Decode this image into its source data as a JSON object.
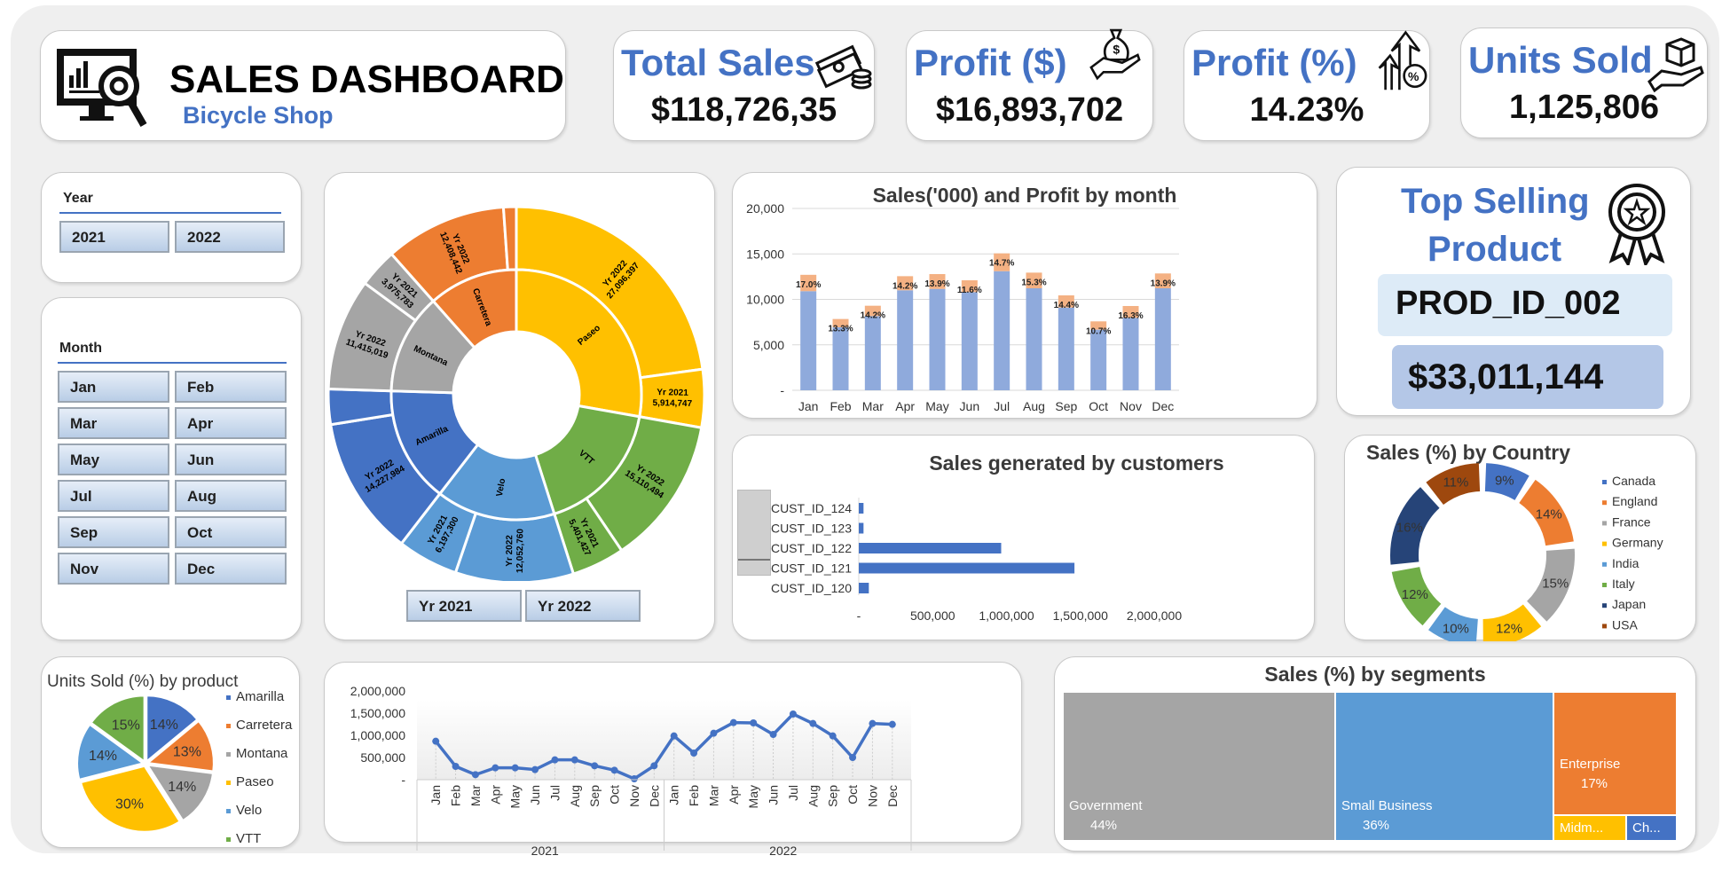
{
  "header": {
    "title": "SALES DASHBOARD",
    "subtitle": "Bicycle Shop"
  },
  "kpis": [
    {
      "title": "Total Sales",
      "value": "$118,726,35",
      "icon": "money-stack-icon"
    },
    {
      "title": "Profit ($)",
      "value": "$16,893,702",
      "icon": "money-bag-hand-icon"
    },
    {
      "title": "Profit (%)",
      "value": "14.23%",
      "icon": "arrow-up-percent-icon"
    },
    {
      "title": "Units Sold",
      "value": "1,125,806",
      "icon": "box-hand-icon"
    }
  ],
  "year_slicer": {
    "label": "Year",
    "options": [
      "2021",
      "2022"
    ]
  },
  "month_slicer": {
    "label": "Month",
    "options": [
      "Jan",
      "Feb",
      "Mar",
      "Apr",
      "May",
      "Jun",
      "Jul",
      "Aug",
      "Sep",
      "Oct",
      "Nov",
      "Dec"
    ]
  },
  "sunburst_slicer": {
    "options": [
      "Yr 2021",
      "Yr 2022"
    ]
  },
  "top_product": {
    "title_line1": "Top Selling",
    "title_line2": "Product",
    "product_id": "PROD_ID_002",
    "value": "$33,011,144"
  },
  "colors": {
    "blue": "#4472C4",
    "orange": "#ED7D31",
    "gray": "#A5A5A5",
    "yellow": "#FFC000",
    "lightblue": "#5B9BD5",
    "green": "#70AD47",
    "navy": "#264478",
    "brown": "#9E480E",
    "bar": "#8FAADC",
    "profit": "#F4B183"
  },
  "chart_data": [
    {
      "id": "sunburst",
      "type": "sunburst",
      "title": "",
      "groups": [
        {
          "name": "Paseo",
          "color": "#FFC000",
          "children": [
            {
              "name": "Yr 2022",
              "value": 27096397,
              "label": "27,096,397"
            },
            {
              "name": "Yr 2021",
              "value": 5914747,
              "label": "5,914,747"
            }
          ]
        },
        {
          "name": "VTT",
          "color": "#70AD47",
          "children": [
            {
              "name": "Yr 2022",
              "value": 15110494,
              "label": "15,110,494"
            },
            {
              "name": "Yr 2021",
              "value": 5401427,
              "label": "5,401,427"
            }
          ]
        },
        {
          "name": "Velo",
          "color": "#5B9BD5",
          "children": [
            {
              "name": "Yr 2022",
              "value": 12052760,
              "label": "12,052,760"
            },
            {
              "name": "Yr 2021",
              "value": 6197300,
              "label": "6,197,300"
            }
          ]
        },
        {
          "name": "Amarilla",
          "color": "#4472C4",
          "children": [
            {
              "name": "Yr 2022",
              "value": 14227984,
              "label": "14,227,984"
            },
            {
              "name": "",
              "value": 3600000,
              "label": ""
            }
          ]
        },
        {
          "name": "Montana",
          "color": "#A5A5A5",
          "children": [
            {
              "name": "Yr 2022",
              "value": 11415019,
              "label": "11,415,019"
            },
            {
              "name": "Yr 2021",
              "value": 3975783,
              "label": "3,975,783"
            }
          ]
        },
        {
          "name": "Carretera",
          "color": "#ED7D31",
          "children": [
            {
              "name": "Yr 2022",
              "value": 12408442,
              "label": "12,408,442"
            },
            {
              "name": "",
              "value": 1300000,
              "label": ""
            }
          ]
        }
      ]
    },
    {
      "id": "monthly",
      "type": "bar",
      "title": "Sales('000) and Profit by month",
      "categories": [
        "Jan",
        "Feb",
        "Mar",
        "Apr",
        "May",
        "Jun",
        "Jul",
        "Aug",
        "Sep",
        "Oct",
        "Nov",
        "Dec"
      ],
      "series": [
        {
          "name": "Sales",
          "values": [
            10900,
            6930,
            8160,
            11000,
            11150,
            10800,
            13100,
            11220,
            9100,
            6670,
            7970,
            11220
          ]
        },
        {
          "name": "Profit",
          "values": [
            1800,
            910,
            1140,
            1550,
            1630,
            1300,
            1960,
            1720,
            1340,
            910,
            1300,
            1630
          ]
        }
      ],
      "data_labels": [
        "17.0%",
        "13.3%",
        "14.2%",
        "14.2%",
        "13.9%",
        "11.6%",
        "14.7%",
        "15.3%",
        "14.4%",
        "10.7%",
        "16.3%",
        "13.9%"
      ],
      "yticks": [
        "-",
        "5,000",
        "10,000",
        "15,000",
        "20,000"
      ],
      "ylim": [
        0,
        20000
      ]
    },
    {
      "id": "customers",
      "type": "bar",
      "orientation": "horizontal",
      "title": "Sales generated by customers",
      "categories": [
        "CUST_ID_124",
        "CUST_ID_123",
        "CUST_ID_122",
        "CUST_ID_121",
        "CUST_ID_120"
      ],
      "values": [
        32000,
        32000,
        964000,
        1460000,
        68000
      ],
      "xticks": [
        "-",
        "500,000",
        "1,000,000",
        "1,500,000",
        "2,000,000"
      ],
      "xlim": [
        0,
        2000000
      ]
    },
    {
      "id": "country",
      "type": "pie",
      "variant": "donut",
      "title": "Sales (%) by Country",
      "legend": "right",
      "categories": [
        "Canada",
        "England",
        "France",
        "Germany",
        "India",
        "Italy",
        "Japan",
        "USA"
      ],
      "values": [
        9,
        14,
        15,
        12,
        10,
        12,
        16,
        11
      ],
      "labels": [
        "9%",
        "14%",
        "15%",
        "12%",
        "10%",
        "12%",
        "16%",
        "11%"
      ]
    },
    {
      "id": "units",
      "type": "pie",
      "title": "Units Sold (%) by product",
      "legend": "right",
      "categories": [
        "Amarilla",
        "Carretera",
        "Montana",
        "Paseo",
        "Velo",
        "VTT"
      ],
      "values": [
        14,
        13,
        14,
        30,
        14,
        15
      ],
      "labels": [
        "14%",
        "13%",
        "14%",
        "30%",
        "14%",
        "15%"
      ]
    },
    {
      "id": "trend",
      "type": "line",
      "title": "",
      "categories": [
        "Jan",
        "Feb",
        "Mar",
        "Apr",
        "May",
        "Jun",
        "Jul",
        "Aug",
        "Sep",
        "Oct",
        "Nov",
        "Dec",
        "Jan",
        "Feb",
        "Mar",
        "Apr",
        "May",
        "Jun",
        "Jul",
        "Aug",
        "Sep",
        "Oct",
        "Nov",
        "Dec"
      ],
      "groups": [
        "2021",
        "2022"
      ],
      "values": [
        867000,
        300000,
        113000,
        267000,
        267000,
        227000,
        447000,
        447000,
        313000,
        213000,
        20000,
        313000,
        987000,
        600000,
        1047000,
        1287000,
        1280000,
        1020000,
        1480000,
        1267000,
        987000,
        500000,
        1267000,
        1247000
      ],
      "yticks": [
        "-",
        "500,000",
        "1,000,000",
        "1,500,000",
        "2,000,000"
      ],
      "ylim": [
        0,
        2000000
      ]
    },
    {
      "id": "segments",
      "type": "treemap",
      "title": "Sales (%) by segments",
      "categories": [
        "Government",
        "Small Business",
        "Enterprise",
        "Midm...",
        "Ch..."
      ],
      "values": [
        44,
        36,
        17,
        2,
        1
      ],
      "labels": [
        "44%",
        "36%",
        "17%",
        "",
        ""
      ]
    }
  ]
}
